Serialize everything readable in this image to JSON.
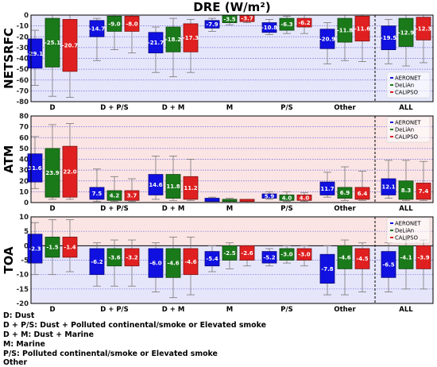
{
  "chart_data": [
    {
      "type": "box",
      "title": "DRE (W/m²)",
      "ylabel": "NETSRFC",
      "ylim": [
        -80,
        0
      ],
      "yticks": [
        0,
        -10,
        -20,
        -30,
        -40,
        -50,
        -60,
        -70,
        -80
      ],
      "background": "#e6e6fb",
      "grid": "dashed",
      "legend_placement": "bottom-right",
      "categories": [
        "D",
        "D + P/S",
        "D + M",
        "M",
        "P/S",
        "Other",
        "ALL"
      ],
      "series": [
        {
          "name": "AERONET",
          "color": "#1010e0",
          "box_low": [
            -49,
            -20,
            -35,
            -12,
            -16,
            -31,
            -32
          ],
          "box_high": [
            -22,
            -5,
            -16,
            -5,
            -7,
            -13,
            -10
          ],
          "whisker_low": [
            -65,
            -42,
            -53,
            -15,
            -18,
            -45,
            -45
          ],
          "whisker_high": [
            -14,
            -3,
            -11,
            -3,
            -4,
            -7,
            -4
          ],
          "labels": [
            "-29.1",
            "-14.7",
            "-21.7",
            "-7.9",
            "-10.8",
            "-20.9",
            "-19.5"
          ]
        },
        {
          "name": "DeLiAn",
          "color": "#1a7a1a",
          "box_low": [
            -48,
            -15,
            -34,
            -7,
            -14,
            -25,
            -29
          ],
          "box_high": [
            -3,
            -1,
            -11,
            0,
            -3,
            -3,
            -3
          ],
          "whisker_low": [
            -75,
            -32,
            -57,
            -9,
            -17,
            -42,
            -47
          ],
          "whisker_high": [
            0,
            0,
            -3,
            0,
            -1,
            0,
            0
          ],
          "labels": [
            "-25.1",
            "-9.0",
            "-18.2",
            "-3.5",
            "-6.3",
            "-11.8",
            "-12.9"
          ]
        },
        {
          "name": "CALIPSO",
          "color": "#e02020",
          "box_low": [
            -52,
            -15,
            -34,
            -6,
            -11,
            -24,
            -23
          ],
          "box_high": [
            -4,
            -1,
            -8,
            0,
            -3,
            -1,
            -2
          ],
          "whisker_low": [
            -76,
            -35,
            -53,
            -7,
            -17,
            -43,
            -44
          ],
          "whisker_high": [
            0,
            0,
            -4,
            0,
            0,
            0,
            0
          ],
          "labels": [
            "-20.7",
            "-8.0",
            "-17.3",
            "-3.7",
            "-6.2",
            "-11.6",
            "-12.3"
          ]
        }
      ]
    },
    {
      "type": "box",
      "ylabel": "ATM",
      "ylim": [
        0,
        80
      ],
      "yticks": [
        0,
        10,
        20,
        30,
        40,
        50,
        60,
        70,
        80
      ],
      "background": "#fbe4e4",
      "grid": "dashed",
      "legend_placement": "top-right",
      "categories": [
        "D",
        "D + P/S",
        "D + M",
        "M",
        "P/S",
        "Other",
        "ALL"
      ],
      "series": [
        {
          "name": "AERONET",
          "color": "#1010e0",
          "box_low": [
            19,
            3,
            7,
            1,
            4,
            7,
            7
          ],
          "box_high": [
            45,
            14,
            26,
            4,
            8,
            19,
            22
          ],
          "whisker_low": [
            13,
            1,
            3,
            1,
            3,
            5,
            4
          ],
          "whisker_high": [
            61,
            31,
            43,
            5,
            10,
            28,
            39
          ],
          "labels": [
            "31.6",
            "7.5",
            "14.6",
            "",
            "5.9",
            "11.7",
            "12.1"
          ]
        },
        {
          "name": "DeLiAn",
          "color": "#1a7a1a",
          "box_low": [
            5,
            2,
            4,
            1,
            2,
            4,
            3
          ],
          "box_high": [
            50,
            11,
            26,
            3,
            7,
            14,
            20
          ],
          "whisker_low": [
            3,
            1,
            2,
            0,
            1,
            2,
            2
          ],
          "whisker_high": [
            72,
            24,
            43,
            4,
            10,
            33,
            39
          ],
          "labels": [
            "23.9",
            "4.2",
            "11.8",
            "",
            "4.0",
            "6.9",
            "8.3"
          ]
        },
        {
          "name": "CALIPSO",
          "color": "#e02020",
          "box_low": [
            5,
            2,
            3,
            1,
            2,
            3,
            3
          ],
          "box_high": [
            52,
            11,
            24,
            3,
            7,
            14,
            18
          ],
          "whisker_low": [
            3,
            1,
            2,
            0,
            1,
            2,
            2
          ],
          "whisker_high": [
            73,
            22,
            40,
            3,
            9,
            29,
            38
          ],
          "labels": [
            "22.0",
            "3.7",
            "11.2",
            "",
            "4.0",
            "6.4",
            "7.4"
          ]
        }
      ]
    },
    {
      "type": "box",
      "ylabel": "TOA",
      "ylim": [
        -20,
        10
      ],
      "yticks": [
        10,
        5,
        0,
        -5,
        -10,
        -15,
        -20
      ],
      "background": "#fbe4e4",
      "background_below_zero": "#e6e6fb",
      "grid": "dashed",
      "legend_placement": "top-right",
      "categories": [
        "D",
        "D + P/S",
        "D + M",
        "M",
        "P/S",
        "Other",
        "ALL"
      ],
      "series": [
        {
          "name": "AERONET",
          "color": "#1010e0",
          "box_low": [
            -6,
            -10,
            -11,
            -7,
            -6,
            -13,
            -11
          ],
          "box_high": [
            4,
            -1,
            -1,
            -2,
            -2,
            -3,
            -2
          ],
          "whisker_low": [
            -10,
            -14,
            -16,
            -9,
            -7,
            -17,
            -16
          ],
          "whisker_high": [
            8,
            1,
            1,
            0,
            -1,
            0,
            1
          ],
          "labels": [
            "-2.3",
            "-6.2",
            "-6.0",
            "-5.4",
            "-5.2",
            "-7.8",
            "-6.5"
          ]
        },
        {
          "name": "DeLiAn",
          "color": "#1a7a1a",
          "box_low": [
            -4,
            -7,
            -11,
            -5,
            -5,
            -8,
            -8
          ],
          "box_high": [
            3,
            -1,
            -1,
            0,
            -1,
            0,
            0
          ],
          "whisker_low": [
            -10,
            -14,
            -18,
            -8,
            -6,
            -17,
            -15
          ],
          "whisker_high": [
            9,
            2,
            3,
            1,
            0,
            2,
            2
          ],
          "labels": [
            "-1.5",
            "-3.6",
            "-4.6",
            "-2.5",
            "-3.0",
            "-4.6",
            "-4.1"
          ]
        },
        {
          "name": "CALIPSO",
          "color": "#e02020",
          "box_low": [
            -4,
            -7,
            -10,
            -5,
            -5,
            -8,
            -8
          ],
          "box_high": [
            3,
            -1,
            -1,
            0,
            -1,
            -1,
            0
          ],
          "whisker_low": [
            -9,
            -14,
            -17,
            -7,
            -7,
            -16,
            -15
          ],
          "whisker_high": [
            9,
            2,
            3,
            0,
            0,
            1,
            2
          ],
          "labels": [
            "-1.4",
            "-3.2",
            "-4.6",
            "-2.6",
            "-3.0",
            "-4.5",
            "-3.9"
          ]
        }
      ]
    }
  ],
  "notes": [
    "D: Dust",
    "D + P/S: Dust + Polluted continental/smoke or Elevated smoke",
    "D + M: Dust + Marine",
    "M: Marine",
    "P/S: Polluted continental/smoke or Elevated smoke",
    "Other"
  ]
}
